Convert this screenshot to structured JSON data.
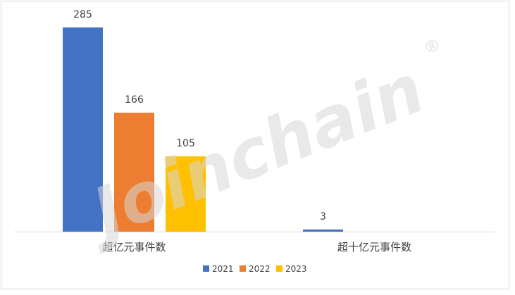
{
  "chart_data": {
    "type": "bar",
    "categories": [
      "超亿元事件数",
      "超十亿元事件数"
    ],
    "series": [
      {
        "name": "2021",
        "values": [
          285,
          3
        ],
        "color": "#4472C4"
      },
      {
        "name": "2022",
        "values": [
          166,
          0
        ],
        "color": "#ED7D31"
      },
      {
        "name": "2023",
        "values": [
          105,
          0
        ],
        "color": "#FFC000"
      }
    ],
    "data_labels": [
      {
        "series": 0,
        "category": 0,
        "text": "285"
      },
      {
        "series": 1,
        "category": 0,
        "text": "166"
      },
      {
        "series": 2,
        "category": 0,
        "text": "105"
      },
      {
        "series": 0,
        "category": 1,
        "text": "3"
      }
    ],
    "title": "",
    "xlabel": "",
    "ylabel": "",
    "ylim": [
      0,
      300
    ],
    "grid": false,
    "y_axis_visible": false,
    "legend_position": "bottom"
  },
  "watermark": {
    "text": "Joinchain",
    "mark": "®"
  }
}
